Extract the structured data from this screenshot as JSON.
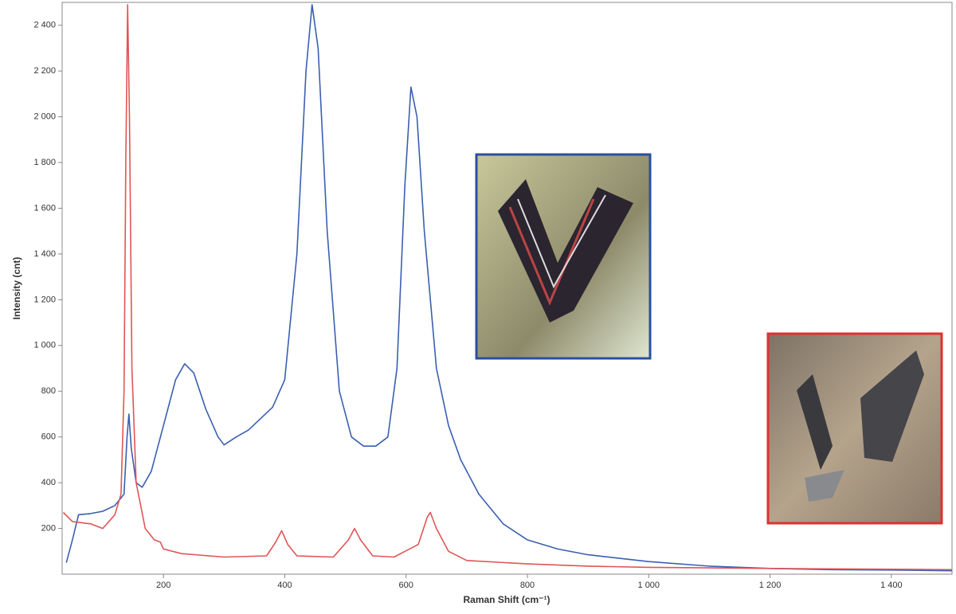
{
  "chart_data": {
    "type": "line",
    "x_label": "Raman Shift (cm⁻¹)",
    "y_label": "Intensity (cnt)",
    "xlim": [
      33,
      1500
    ],
    "ylim": [
      0,
      2500
    ],
    "xticks": [
      200,
      400,
      600,
      800,
      {
        "value": 1000,
        "label": "1 000"
      },
      {
        "value": 1200,
        "label": "1 200"
      },
      {
        "value": 1400,
        "label": "1 400"
      }
    ],
    "yticks": [
      200,
      400,
      600,
      800,
      {
        "value": 1000,
        "label": "1 000"
      },
      {
        "value": 1200,
        "label": "1 200"
      },
      {
        "value": 1400,
        "label": "1 400"
      },
      {
        "value": 1600,
        "label": "1 600"
      },
      {
        "value": 1800,
        "label": "1 800"
      },
      {
        "value": 2000,
        "label": "2 000"
      },
      {
        "value": 2200,
        "label": "2 200"
      },
      {
        "value": 2400,
        "label": "2 400"
      }
    ],
    "series": [
      {
        "color": "#3a5fb0",
        "x": [
          40,
          50,
          60,
          80,
          100,
          120,
          135,
          140,
          143,
          147,
          155,
          165,
          180,
          200,
          220,
          235,
          250,
          270,
          290,
          300,
          320,
          340,
          360,
          380,
          400,
          420,
          435,
          445,
          455,
          470,
          490,
          510,
          530,
          550,
          570,
          585,
          598,
          608,
          618,
          630,
          650,
          670,
          690,
          720,
          760,
          800,
          850,
          900,
          1000,
          1100,
          1200,
          1300,
          1400,
          1500
        ],
        "values": [
          50,
          150,
          260,
          265,
          275,
          300,
          350,
          600,
          700,
          550,
          400,
          380,
          450,
          650,
          850,
          920,
          880,
          720,
          600,
          565,
          600,
          630,
          680,
          730,
          850,
          1400,
          2200,
          2490,
          2300,
          1500,
          800,
          600,
          560,
          560,
          600,
          900,
          1700,
          2130,
          2000,
          1500,
          900,
          650,
          500,
          350,
          220,
          150,
          110,
          85,
          55,
          35,
          25,
          20,
          18,
          15
        ]
      },
      {
        "color": "#e05555",
        "x": [
          35,
          50,
          80,
          100,
          120,
          130,
          135,
          138,
          141,
          144,
          148,
          155,
          170,
          185,
          195,
          200,
          230,
          300,
          370,
          385,
          395,
          405,
          420,
          480,
          505,
          515,
          525,
          545,
          580,
          620,
          635,
          640,
          650,
          670,
          700,
          800,
          900,
          1000,
          1200,
          1500
        ],
        "values": [
          270,
          230,
          220,
          200,
          260,
          350,
          800,
          1800,
          2490,
          2000,
          900,
          400,
          200,
          150,
          140,
          110,
          90,
          75,
          80,
          140,
          190,
          130,
          80,
          75,
          150,
          200,
          150,
          80,
          75,
          130,
          250,
          270,
          200,
          100,
          60,
          45,
          35,
          30,
          25,
          20
        ]
      }
    ]
  }
}
